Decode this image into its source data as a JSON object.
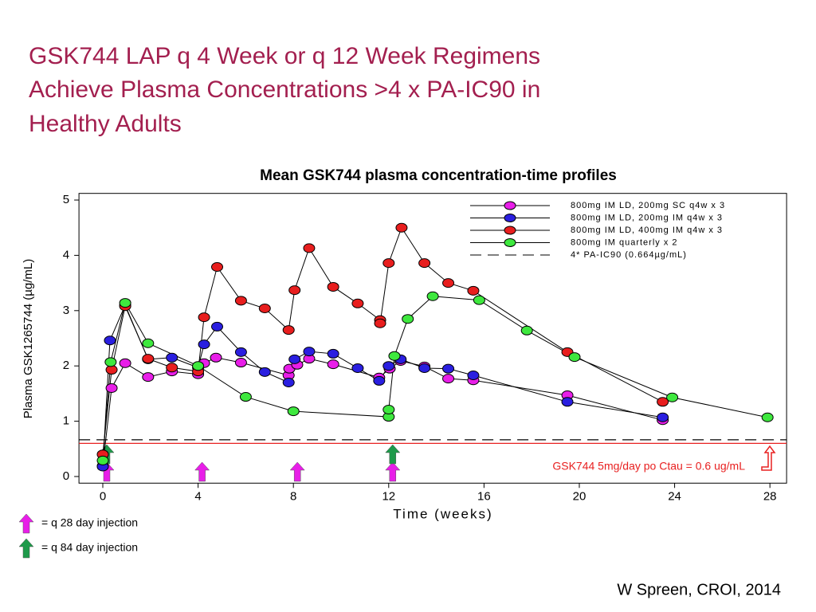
{
  "chart_data": {
    "type": "line",
    "title": [
      "GSK744 LAP q 4 Week or q 12 Week Regimens",
      "Achieve Plasma Concentrations >4 x PA-IC90 in",
      "Healthy Adults"
    ],
    "chart_title": "Mean GSK744 plasma concentration-time profiles",
    "x_label": "Time (weeks)",
    "y_label": "Plasma GSK1265744 (µg/mL)",
    "xlim": [
      -1,
      28.7
    ],
    "ylim": [
      -0.12,
      5.12
    ],
    "xticks": [
      0,
      4,
      8,
      12,
      16,
      20,
      24,
      28
    ],
    "yticks": [
      0,
      1,
      2,
      3,
      4,
      5
    ],
    "legend": "upper right",
    "series": [
      {
        "name": "800mg IM LD, 200mg SC q4w x 3",
        "color": "#e81ee8",
        "x": [
          0,
          0.37,
          0.94,
          1.9,
          2.9,
          4,
          4.25,
          4.75,
          5.8,
          7.8,
          7.83,
          8.16,
          8.66,
          9.67,
          11.6,
          12.04,
          12.5,
          13.5,
          14.5,
          15.55,
          19.5,
          23.5
        ],
        "values": [
          0.19,
          1.6,
          2.05,
          1.8,
          1.9,
          1.85,
          2.05,
          2.15,
          2.06,
          1.83,
          1.95,
          2.02,
          2.13,
          2.03,
          1.79,
          1.95,
          2.09,
          1.99,
          1.77,
          1.74,
          1.47,
          1.02
        ]
      },
      {
        "name": "800mg IM LD, 200mg IM q4w x 3",
        "color": "#2a1fe0",
        "x": [
          0,
          0.3,
          0.94,
          1.9,
          2.9,
          4,
          4.25,
          4.8,
          5.8,
          6.8,
          7.8,
          8.05,
          8.66,
          9.67,
          10.7,
          11.6,
          12,
          12.5,
          13.5,
          14.5,
          15.55,
          19.5,
          23.5
        ],
        "values": [
          0.18,
          2.46,
          3.1,
          2.12,
          2.15,
          1.97,
          2.39,
          2.71,
          2.25,
          1.89,
          1.7,
          2.12,
          2.26,
          2.22,
          1.96,
          1.73,
          2.0,
          2.12,
          1.96,
          1.95,
          1.83,
          1.35,
          1.07
        ]
      },
      {
        "name": "800mg IM LD, 400mg IM q4w x 3",
        "color": "#e81e1e",
        "x": [
          0,
          0.37,
          0.94,
          1.9,
          2.9,
          4,
          4.25,
          4.8,
          5.8,
          6.8,
          7.8,
          8.05,
          8.66,
          9.67,
          10.7,
          11.64,
          11.64,
          12,
          12.54,
          13.5,
          14.5,
          15.55,
          19.5,
          23.5
        ],
        "values": [
          0.4,
          1.93,
          3.08,
          2.13,
          1.97,
          1.9,
          2.88,
          3.79,
          3.18,
          3.04,
          2.65,
          3.37,
          4.13,
          3.43,
          3.13,
          2.83,
          2.77,
          3.86,
          4.5,
          3.86,
          3.5,
          3.36,
          2.25,
          1.35
        ]
      },
      {
        "name": "800mg IM quarterly x 2",
        "color": "#3ee83e",
        "x": [
          0,
          0.33,
          0.94,
          1.9,
          4,
          6,
          8,
          12,
          12,
          12.24,
          12.8,
          13.85,
          15.8,
          17.8,
          19.8,
          23.9,
          27.9
        ],
        "values": [
          0.29,
          2.07,
          3.14,
          2.41,
          2.0,
          1.44,
          1.18,
          1.08,
          1.21,
          2.18,
          2.85,
          3.26,
          3.19,
          2.64,
          2.16,
          1.43,
          1.07
        ]
      }
    ],
    "reference_lines": [
      {
        "name": "4* PA-IC90 (0.664µg/mL)",
        "value": 0.664,
        "color": "#000000"
      },
      {
        "name": "GSK744 5mg/day po Ctau = 0.6 ug/mL",
        "value": 0.6,
        "color": "#e82020"
      }
    ],
    "injections": [
      {
        "name": "= q 28 day injection",
        "color": "#e81ee8",
        "x": [
          0,
          4,
          8,
          12
        ]
      },
      {
        "name": "= q 84 day injection",
        "color": "#1e9a4a",
        "x": [
          0,
          12
        ]
      }
    ],
    "source": "W Spreen, CROI, 2014"
  }
}
